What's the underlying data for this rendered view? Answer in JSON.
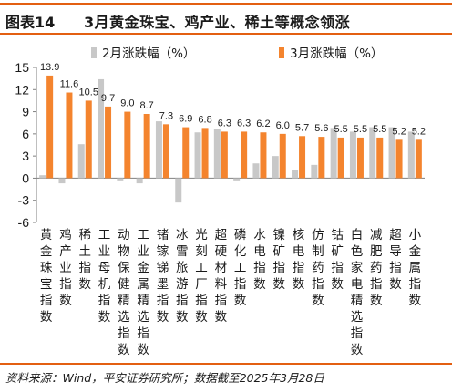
{
  "header": {
    "figure_label": "图表14",
    "title": "3月黄金珠宝、鸡产业、稀土等概念领涨"
  },
  "source": "资料来源：Wind，平安证券研究所；数据截至2025年3月28日",
  "colors": {
    "accent": "#e35f11",
    "feb_series": "#c8c8c8",
    "mar_series": "#f4842e",
    "text": "#1a1a1a"
  },
  "chart_data": {
    "type": "bar",
    "legend_position": "top",
    "grid": false,
    "ylim": [
      -6,
      15
    ],
    "yticks": [
      -6,
      -3,
      0,
      3,
      6,
      9,
      12,
      15
    ],
    "categories": [
      "黄金珠宝指数",
      "鸡产业指数",
      "稀土指数",
      "工业母机指数",
      "动物保健精选指数",
      "工业金属精选指数",
      "锗镓锑墨指数",
      "冰雪旅游指数",
      "光刻工厂指数",
      "超硬材料指数",
      "磷化工指数",
      "水电指数",
      "镍矿指数",
      "核电指数",
      "仿制药指数",
      "钴矿指数",
      "白色家电精选指数",
      "减肥药指数",
      "超导指数",
      "小金属指数"
    ],
    "series": [
      {
        "name": "2月涨跌幅（%）",
        "values": [
          0.4,
          -0.7,
          4.6,
          13.4,
          -0.3,
          -0.7,
          7.7,
          -3.3,
          6.2,
          6.7,
          -0.3,
          2.0,
          3.0,
          1.1,
          1.8,
          6.8,
          6.3,
          6.9,
          6.9,
          6.3
        ]
      },
      {
        "name": "3月涨跌幅（%）",
        "values": [
          13.9,
          11.6,
          10.5,
          9.7,
          9.0,
          8.7,
          7.3,
          6.9,
          6.8,
          6.3,
          6.3,
          6.2,
          6.0,
          5.7,
          5.6,
          5.5,
          5.5,
          5.5,
          5.2,
          5.2
        ],
        "labels": [
          "13.9",
          "11.6",
          "10.5",
          "9.7",
          "9.0",
          "8.7",
          "7.3",
          "6.9",
          "6.8",
          "6.3",
          "6.3",
          "6.2",
          "6.0",
          "5.7",
          "5.6",
          "5.5",
          "5.5",
          "5.5",
          "5.2",
          "5.2"
        ]
      }
    ]
  }
}
